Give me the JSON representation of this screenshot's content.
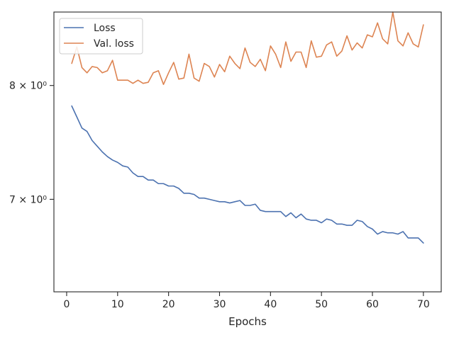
{
  "chart_data": {
    "type": "line",
    "title": "",
    "xlabel": "Epochs",
    "ylabel": "",
    "xlim": [
      -2.5,
      73.5
    ],
    "ylim": [
      6.28,
      8.72
    ],
    "y_scale": "log",
    "grid": false,
    "legend_placement": "top-left",
    "x_ticks": [
      0,
      10,
      20,
      30,
      40,
      50,
      60,
      70
    ],
    "x_tick_labels": [
      "0",
      "10",
      "20",
      "30",
      "40",
      "50",
      "60",
      "70"
    ],
    "y_ticks": [
      7,
      8
    ],
    "y_tick_labels": [
      "7 × 10⁰",
      "8 × 10⁰"
    ],
    "x": [
      1,
      2,
      3,
      4,
      5,
      6,
      7,
      8,
      9,
      10,
      11,
      12,
      13,
      14,
      15,
      16,
      17,
      18,
      19,
      20,
      21,
      22,
      23,
      24,
      25,
      26,
      27,
      28,
      29,
      30,
      31,
      32,
      33,
      34,
      35,
      36,
      37,
      38,
      39,
      40,
      41,
      42,
      43,
      44,
      45,
      46,
      47,
      48,
      49,
      50,
      51,
      52,
      53,
      54,
      55,
      56,
      57,
      58,
      59,
      60,
      61,
      62,
      63,
      64,
      65,
      66,
      67,
      68,
      69,
      70
    ],
    "series": [
      {
        "name": "Loss",
        "color": "#4c72b0",
        "values": [
          7.81,
          7.71,
          7.61,
          7.58,
          7.5,
          7.45,
          7.4,
          7.36,
          7.33,
          7.31,
          7.28,
          7.27,
          7.22,
          7.19,
          7.19,
          7.16,
          7.16,
          7.13,
          7.13,
          7.11,
          7.11,
          7.09,
          7.05,
          7.05,
          7.04,
          7.01,
          7.01,
          7.0,
          6.99,
          6.98,
          6.98,
          6.97,
          6.98,
          6.99,
          6.95,
          6.95,
          6.96,
          6.91,
          6.9,
          6.9,
          6.9,
          6.9,
          6.86,
          6.89,
          6.85,
          6.88,
          6.84,
          6.83,
          6.83,
          6.81,
          6.84,
          6.83,
          6.8,
          6.8,
          6.79,
          6.79,
          6.83,
          6.82,
          6.78,
          6.76,
          6.72,
          6.74,
          6.73,
          6.73,
          6.72,
          6.74,
          6.69,
          6.69,
          6.69,
          6.65
        ]
      },
      {
        "name": "Val. loss",
        "color": "#dd8452",
        "values": [
          8.21,
          8.37,
          8.17,
          8.12,
          8.18,
          8.17,
          8.12,
          8.14,
          8.24,
          8.05,
          8.05,
          8.05,
          8.02,
          8.05,
          8.02,
          8.03,
          8.12,
          8.14,
          8.01,
          8.12,
          8.22,
          8.06,
          8.07,
          8.3,
          8.07,
          8.04,
          8.21,
          8.18,
          8.08,
          8.2,
          8.13,
          8.28,
          8.21,
          8.16,
          8.36,
          8.22,
          8.18,
          8.25,
          8.14,
          8.38,
          8.3,
          8.17,
          8.42,
          8.23,
          8.32,
          8.32,
          8.17,
          8.43,
          8.27,
          8.28,
          8.39,
          8.42,
          8.28,
          8.33,
          8.48,
          8.34,
          8.41,
          8.36,
          8.49,
          8.47,
          8.61,
          8.45,
          8.4,
          8.72,
          8.43,
          8.38,
          8.51,
          8.4,
          8.37,
          8.59
        ]
      }
    ]
  }
}
